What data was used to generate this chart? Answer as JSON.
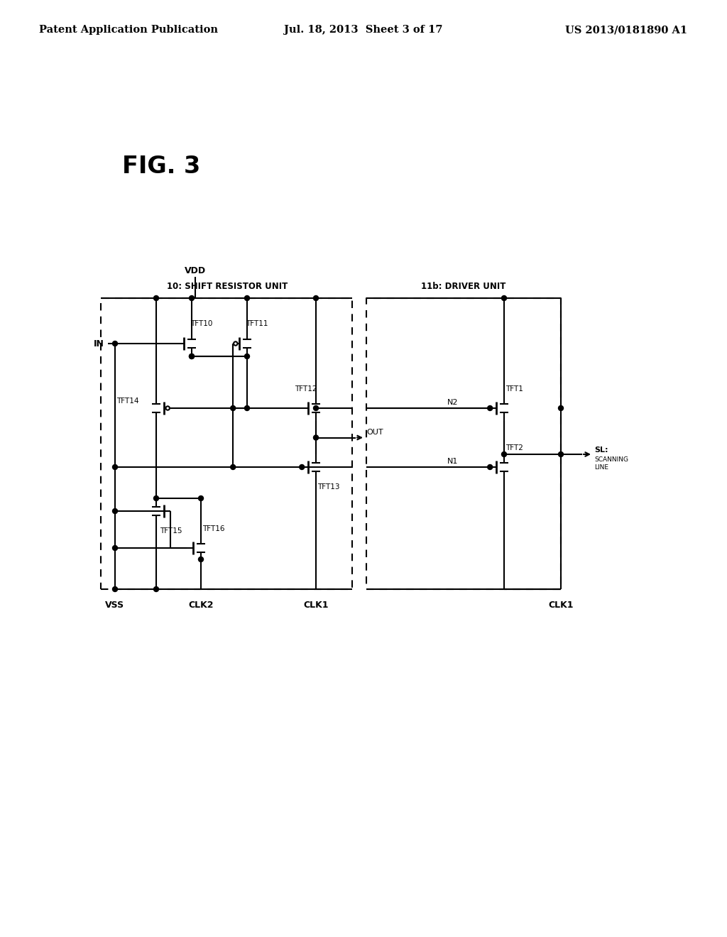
{
  "fig_label": "FIG. 3",
  "header_left": "Patent Application Publication",
  "header_mid": "Jul. 18, 2013  Sheet 3 of 17",
  "header_right": "US 2013/0181890 A1",
  "bg_color": "#ffffff",
  "box1_label": "10: SHIFT RESISTOR UNIT",
  "box2_label": "11b: DRIVER UNIT",
  "vdd_label": "VDD",
  "vss_label": "VSS",
  "clk2_label": "CLK2",
  "clk1_label": "CLK1",
  "in_label": "IN",
  "out_label": "OUT",
  "sl_label": "SL:",
  "scanning_line": "SCANNING\nLINE",
  "n1_label": "N1",
  "n2_label": "N2"
}
